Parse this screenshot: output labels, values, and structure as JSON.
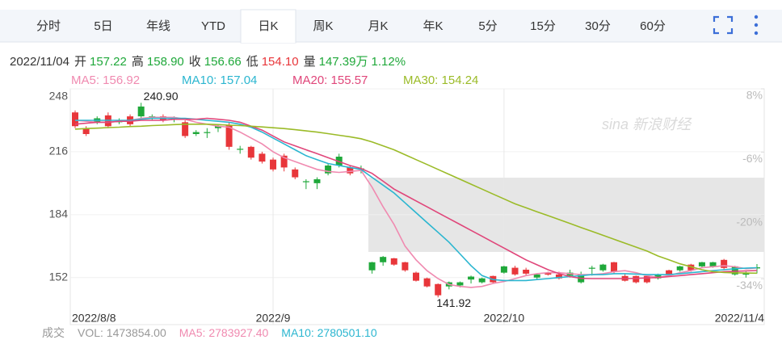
{
  "tabs": {
    "items": [
      "分时",
      "5日",
      "年线",
      "YTD",
      "日K",
      "周K",
      "月K",
      "年K",
      "5分",
      "15分",
      "30分",
      "60分"
    ],
    "active_index": 4
  },
  "info": {
    "date": "2022/11/04",
    "items": [
      {
        "label": "开",
        "value": "157.22",
        "color": "#1fa83a"
      },
      {
        "label": "高",
        "value": "158.90",
        "color": "#1fa83a"
      },
      {
        "label": "收",
        "value": "156.66",
        "color": "#1fa83a"
      },
      {
        "label": "低",
        "value": "154.10",
        "color": "#e8363a"
      },
      {
        "label": "量",
        "value": "147.39万",
        "color": "#1fa83a"
      },
      {
        "value": "1.12%",
        "color": "#1fa83a"
      }
    ]
  },
  "volume": {
    "title": "成交",
    "items": [
      {
        "text": "VOL: 1473854.00",
        "color": "#999999"
      },
      {
        "text": "MA5: 2783927.40",
        "color": "#f08ab0"
      },
      {
        "text": "MA10: 2780501.10",
        "color": "#2bb6d0"
      }
    ]
  },
  "chart_data": {
    "type": "candlestick",
    "watermark": "sina 新浪财经",
    "categories": [
      "2022/8/8",
      null,
      null,
      null,
      null,
      null,
      null,
      null,
      null,
      null,
      null,
      null,
      null,
      null,
      null,
      null,
      null,
      null,
      "2022/9",
      null,
      null,
      null,
      null,
      null,
      null,
      null,
      null,
      null,
      null,
      null,
      null,
      null,
      null,
      null,
      null,
      null,
      null,
      null,
      null,
      "2022/10",
      null,
      null,
      null,
      null,
      null,
      null,
      null,
      null,
      null,
      null,
      null,
      null,
      null,
      null,
      null,
      null,
      null,
      null,
      null,
      null,
      null,
      null,
      "2022/11/4"
    ],
    "open": [
      229,
      225,
      233,
      229,
      231.5,
      230,
      239,
      234,
      232,
      233,
      224,
      226,
      226,
      229,
      218.5,
      217.5,
      213,
      211,
      207,
      208,
      203,
      201,
      202,
      209,
      213.5,
      205,
      207.5,
      159.8,
      162.5,
      158.6,
      155.7,
      150.4,
      147.5,
      143,
      149.6,
      149.6,
      152.5,
      151.6,
      149.6,
      157.7,
      153.6,
      154,
      153.6,
      153.5,
      151.6,
      154.5,
      153.6,
      157,
      158.6,
      154.9,
      150.4,
      149.6,
      149.6,
      153.6,
      153.6,
      157.7,
      155.7,
      159.8,
      159.8,
      156.9,
      157.7,
      154.5,
      157.22
    ],
    "close": [
      236,
      228,
      231,
      234.5,
      231,
      234,
      234,
      233,
      234,
      232.5,
      231,
      225,
      225.5,
      228,
      229.5,
      217,
      218.5,
      215,
      212,
      214,
      207,
      200.5,
      200,
      205,
      209,
      208,
      207,
      155.7,
      159.8,
      161.8,
      159.8,
      154.5,
      151.6,
      148.7,
      147.5,
      148,
      151,
      149.6,
      152.8,
      154.5,
      157,
      156,
      152,
      154.5,
      153.6,
      153,
      149.6,
      156.5,
      155.7,
      159.8,
      152.8,
      152.8,
      152.8,
      151.6,
      155.7,
      155.7,
      158.6,
      157.7,
      157.7,
      161,
      153.6,
      153.5,
      156.66
    ],
    "low": [
      228,
      224,
      230,
      228,
      230,
      229,
      233,
      232,
      231,
      231,
      223,
      224,
      223,
      226,
      217,
      215,
      212,
      210,
      206,
      206,
      202,
      197,
      197,
      204,
      208,
      204,
      205,
      154,
      158,
      158,
      155,
      150,
      147,
      141.92,
      146,
      147,
      149,
      149,
      149,
      154,
      153,
      153,
      151,
      153,
      151,
      152,
      149,
      153,
      155,
      154,
      150,
      149,
      149,
      151,
      153,
      155,
      155,
      157,
      157,
      156,
      153,
      152,
      154.1
    ],
    "high": [
      237,
      229,
      234,
      236,
      233,
      235,
      240.9,
      235,
      235,
      234,
      232,
      227,
      228,
      230,
      231,
      219,
      219,
      216,
      213,
      215,
      208,
      202,
      203,
      210,
      215,
      209,
      209,
      160,
      163,
      162,
      160,
      155,
      152,
      149,
      150,
      150,
      153,
      152,
      153,
      158,
      158,
      157,
      154,
      155,
      155,
      156,
      155,
      158,
      159,
      160,
      154,
      153,
      153,
      154,
      156,
      158,
      159,
      160,
      160,
      161.5,
      158,
      155,
      158.9
    ],
    "up_color": "#e8363a",
    "down_color": "#1fa83a",
    "max_label": "240.90",
    "min_label": "141.92",
    "series": [
      {
        "name": "MA5: 156.92",
        "color": "#f08ab0",
        "values": [
          232,
          231.5,
          231,
          231,
          231.5,
          232,
          233,
          233.5,
          233.5,
          233.5,
          232.5,
          231,
          230,
          229,
          228.5,
          226,
          223,
          220,
          216,
          213,
          211,
          209,
          207,
          206,
          205.5,
          206,
          206.5,
          198,
          188,
          179,
          168,
          161,
          155.5,
          151.5,
          148.5,
          147.5,
          147,
          147.5,
          149,
          150,
          151.5,
          153,
          154,
          154.5,
          154.5,
          154,
          153.5,
          153.5,
          154,
          155,
          155.5,
          154.5,
          153,
          152,
          153,
          154.5,
          155.5,
          157,
          157.5,
          158,
          157.5,
          156.5,
          156.92
        ]
      },
      {
        "name": "MA10: 157.04",
        "color": "#2bb6d0",
        "values": [
          232,
          232,
          232,
          232,
          232,
          232,
          232.5,
          233,
          233,
          233,
          233,
          232.5,
          232,
          231.5,
          231,
          230,
          228.5,
          226,
          223,
          220,
          217,
          214,
          212,
          210,
          209,
          208,
          207,
          203,
          199,
          195,
          190,
          185,
          180,
          175,
          170,
          164,
          158,
          153,
          151,
          150.5,
          150.5,
          150.5,
          151,
          151.5,
          152,
          152.5,
          153,
          153.5,
          153.5,
          154,
          154,
          153.8,
          153.5,
          153.5,
          153.5,
          154,
          154.5,
          155,
          155.5,
          156,
          156.5,
          156.8,
          157.04
        ]
      },
      {
        "name": "MA20: 155.57",
        "color": "#e0467a",
        "values": [
          230,
          230.5,
          231,
          231,
          231.5,
          231.5,
          232,
          232,
          232,
          232.5,
          232.5,
          232.5,
          233,
          232.5,
          232,
          231,
          229,
          227,
          224,
          221,
          219,
          217,
          215,
          213,
          211,
          209,
          207.5,
          205,
          201,
          197,
          194,
          191,
          188,
          185,
          182,
          179,
          176,
          173,
          170,
          167,
          164,
          161,
          158.5,
          156,
          154,
          152.5,
          151.6,
          151.5,
          151.5,
          151.5,
          151.5,
          151.6,
          151.8,
          152,
          152.5,
          153,
          153.5,
          154,
          154.5,
          155,
          155.2,
          155.4,
          155.57
        ]
      },
      {
        "name": "MA30: 154.24",
        "color": "#9bbb28",
        "values": [
          227.5,
          227.8,
          228,
          228.3,
          228.5,
          228.8,
          229,
          229.3,
          229.5,
          229.8,
          230,
          230,
          230,
          229.8,
          229.5,
          229.3,
          229,
          228.6,
          228.2,
          227.8,
          227.2,
          226.6,
          226,
          225.2,
          224.4,
          223.6,
          222.6,
          221,
          219,
          217,
          214.5,
          212,
          209.5,
          207,
          204.5,
          202,
          199.5,
          197,
          194.5,
          192,
          189.5,
          187.5,
          185.5,
          183.5,
          181.5,
          179.5,
          177.5,
          175.5,
          173.5,
          171.5,
          169.5,
          167.5,
          165.5,
          163,
          161,
          159,
          157.5,
          156,
          155,
          154.6,
          154.4,
          154.3,
          154.24
        ]
      }
    ],
    "ylim": [
      133,
      248
    ],
    "yticks": [
      248,
      216,
      184,
      152
    ],
    "y2lim": [
      -42,
      8
    ],
    "y2ticks": [
      {
        "value": 8,
        "label": "8%"
      },
      {
        "value": -6,
        "label": "-6%"
      },
      {
        "value": -20,
        "label": "-20%"
      },
      {
        "value": -34,
        "label": "-34%"
      }
    ],
    "grid": true
  }
}
